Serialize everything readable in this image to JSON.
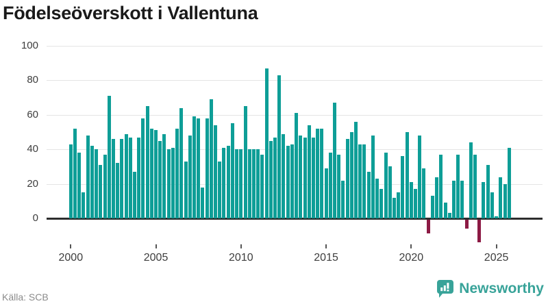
{
  "title": "Födelseöverskott i Vallentuna",
  "source": "Källa: SCB",
  "logo_text": "Newsworthy",
  "colors": {
    "bar_positive": "#0e9e97",
    "bar_negative": "#8c1a44",
    "gridline": "#e4e4e4",
    "zero_axis": "#2d2d2d",
    "title_text": "#1a1a1a",
    "axis_text": "#3d3d3d",
    "source_text": "#8b8b8b",
    "logo_teal": "#38a399"
  },
  "chart_data": {
    "type": "bar",
    "title": "Födelseöverskott i Vallentuna",
    "frequency": "quarterly",
    "x_start": "2000 Q1",
    "x_end": "2025 Q4",
    "values": [
      43,
      52,
      38,
      15,
      48,
      42,
      40,
      31,
      37,
      71,
      46,
      32,
      46,
      49,
      47,
      27,
      47,
      58,
      65,
      52,
      51,
      45,
      49,
      40,
      41,
      52,
      64,
      33,
      48,
      59,
      58,
      18,
      58,
      69,
      54,
      33,
      41,
      42,
      55,
      40,
      40,
      65,
      40,
      40,
      40,
      37,
      87,
      45,
      47,
      83,
      49,
      42,
      43,
      61,
      48,
      47,
      54,
      47,
      52,
      52,
      29,
      38,
      67,
      37,
      22,
      46,
      50,
      56,
      43,
      43,
      27,
      48,
      23,
      17,
      38,
      30,
      12,
      15,
      36,
      50,
      21,
      17,
      48,
      29,
      -8,
      13,
      24,
      37,
      9,
      3,
      22,
      37,
      22,
      -5,
      44,
      37,
      -13,
      21,
      31,
      15,
      1,
      24,
      20,
      41
    ],
    "y_ticks": [
      0,
      20,
      40,
      60,
      80,
      100
    ],
    "x_tick_labels": [
      "2000",
      "2005",
      "2010",
      "2015",
      "2020",
      "2025"
    ],
    "x_tick_indices": [
      0,
      20,
      40,
      60,
      80,
      100
    ],
    "ylim": [
      -15,
      100
    ],
    "grid": true,
    "legend": "none",
    "xlabel": "",
    "ylabel": ""
  }
}
